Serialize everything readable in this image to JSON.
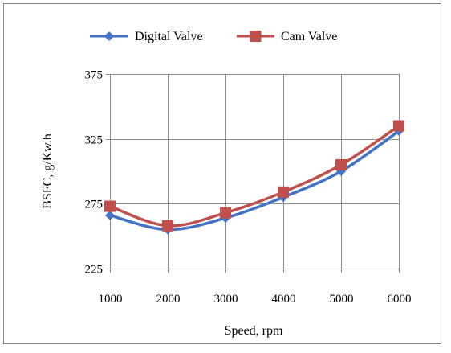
{
  "chart_data": {
    "type": "line",
    "title": "",
    "xlabel": "Speed, rpm",
    "ylabel": "BSFC, g/Kw.h",
    "x": [
      1000,
      2000,
      3000,
      4000,
      5000,
      6000
    ],
    "xlim": [
      1000,
      6000
    ],
    "ylim": [
      225,
      375
    ],
    "yticks": [
      225,
      275,
      325,
      375
    ],
    "xticks": [
      1000,
      2000,
      3000,
      4000,
      5000,
      6000
    ],
    "grid": "vertical-and-horizontal",
    "legend_position": "top",
    "series": [
      {
        "name": "Digital Valve",
        "values": [
          266,
          255,
          264,
          280,
          300,
          331
        ],
        "color": "#4472c4",
        "marker": "diamond"
      },
      {
        "name": "Cam Valve",
        "values": [
          273,
          258,
          268,
          284,
          305,
          335
        ],
        "color": "#c0504d",
        "marker": "square"
      }
    ]
  }
}
